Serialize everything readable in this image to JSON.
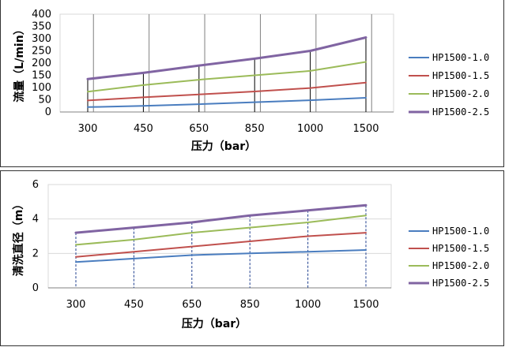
{
  "chart_data": [
    {
      "type": "line",
      "categories": [
        "300",
        "450",
        "650",
        "850",
        "1000",
        "1500"
      ],
      "ylim": [
        0,
        400
      ],
      "yticks": [
        0,
        50,
        100,
        150,
        200,
        250,
        300,
        350,
        400
      ],
      "xlabel": "压力（bar）",
      "ylabel": "流量（L/min）",
      "grid": "vertical",
      "legend": "right",
      "series": [
        {
          "name": "HP1500-1.0",
          "color": "#4a7dbf",
          "values": [
            20,
            25,
            32,
            40,
            48,
            58
          ]
        },
        {
          "name": "HP1500-1.5",
          "color": "#c0504d",
          "values": [
            47,
            60,
            72,
            84,
            98,
            120
          ]
        },
        {
          "name": "HP1500-2.0",
          "color": "#9bbb59",
          "values": [
            83,
            110,
            132,
            150,
            168,
            205
          ]
        },
        {
          "name": "HP1500-2.5",
          "color": "#8064a2",
          "values": [
            135,
            160,
            190,
            218,
            250,
            305
          ]
        }
      ]
    },
    {
      "type": "line",
      "categories": [
        "300",
        "450",
        "650",
        "850",
        "1000",
        "1500"
      ],
      "ylim": [
        0,
        6
      ],
      "yticks": [
        0,
        2,
        4,
        6
      ],
      "xlabel": "压力（bar）",
      "ylabel": "清洗直径（m）",
      "grid": "horizontal",
      "legend": "right",
      "series": [
        {
          "name": "HP1500-1.0",
          "color": "#4a7dbf",
          "values": [
            1.5,
            1.7,
            1.9,
            2.0,
            2.1,
            2.2
          ]
        },
        {
          "name": "HP1500-1.5",
          "color": "#c0504d",
          "values": [
            1.8,
            2.1,
            2.4,
            2.7,
            3.0,
            3.2
          ]
        },
        {
          "name": "HP1500-2.0",
          "color": "#9bbb59",
          "values": [
            2.5,
            2.8,
            3.2,
            3.5,
            3.8,
            4.2
          ]
        },
        {
          "name": "HP1500-2.5",
          "color": "#8064a2",
          "values": [
            3.2,
            3.5,
            3.8,
            4.2,
            4.5,
            4.8
          ]
        }
      ]
    }
  ]
}
